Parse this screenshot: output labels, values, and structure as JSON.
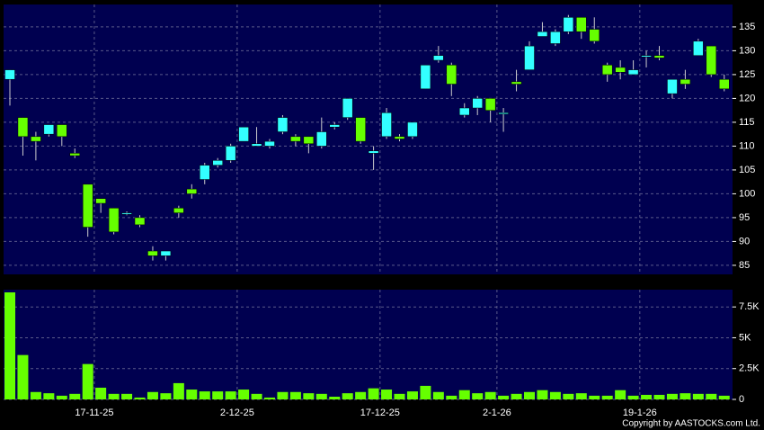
{
  "chart_data": [
    {
      "type": "candlestick",
      "categories": [
        null,
        null,
        null,
        null,
        null,
        null,
        null,
        "17-11-25",
        null,
        null,
        null,
        null,
        null,
        null,
        null,
        null,
        null,
        null,
        "2-12-25",
        null,
        null,
        null,
        null,
        null,
        null,
        null,
        null,
        null,
        null,
        "17-12-25",
        null,
        null,
        null,
        null,
        null,
        null,
        null,
        null,
        "2-1-26",
        null,
        null,
        null,
        null,
        null,
        null,
        null,
        null,
        null,
        null,
        "19-1-26",
        null,
        null,
        null,
        null,
        null,
        null
      ],
      "open": [
        124,
        116,
        112,
        112.5,
        114.5,
        108.5,
        102,
        99,
        97,
        96,
        95,
        88,
        87,
        97,
        101,
        103,
        106,
        107,
        111,
        110,
        110,
        113,
        112,
        112,
        110,
        114,
        116,
        116,
        108.5,
        112,
        112,
        112,
        122,
        128,
        127,
        116.5,
        118,
        120,
        117,
        123.5,
        126,
        133,
        131.5,
        134,
        137,
        134.5,
        127,
        126.5,
        125,
        129,
        129,
        121,
        124,
        129,
        131,
        124
      ],
      "high": [
        126,
        116,
        113,
        114.5,
        114.5,
        109.5,
        102,
        99,
        97,
        96.3,
        95.5,
        89,
        88,
        97.5,
        102,
        106.5,
        107.5,
        110.5,
        114,
        114,
        111.5,
        116.5,
        112.5,
        112,
        116,
        115,
        120,
        116,
        110,
        118,
        112.5,
        115,
        127,
        131,
        127.5,
        119,
        120.5,
        120,
        118,
        126,
        132,
        136,
        134.5,
        137.5,
        137,
        137,
        127.5,
        128,
        128,
        130,
        131,
        124,
        126,
        132.5,
        131,
        125
      ],
      "low": [
        118.5,
        108,
        107,
        112,
        110,
        107.5,
        91,
        96,
        91.5,
        95.5,
        93,
        86,
        86,
        95,
        99,
        102,
        105.5,
        106.5,
        111,
        110,
        109.5,
        112.5,
        110,
        108.5,
        109.5,
        113.5,
        115.5,
        110.5,
        105,
        111.5,
        111,
        111.5,
        122,
        127.5,
        120.5,
        116,
        116.5,
        115,
        113,
        121.5,
        126,
        133,
        131,
        133.5,
        132.5,
        131.5,
        123.5,
        124,
        125,
        126.5,
        128,
        120,
        122,
        129,
        124.5,
        121.5
      ],
      "close": [
        126,
        112,
        111,
        114.5,
        112,
        108,
        93,
        98,
        92,
        96,
        93.5,
        87,
        88,
        96,
        100,
        106,
        107,
        110,
        114,
        110.5,
        111,
        116,
        111,
        110.5,
        113,
        114.5,
        120,
        111,
        109,
        117,
        111.5,
        115,
        127,
        129,
        123,
        118,
        120,
        117.5,
        117,
        123,
        131,
        134,
        134,
        137,
        134,
        132,
        125,
        125.5,
        126,
        129,
        128.5,
        124,
        123,
        132,
        125,
        122
      ],
      "up_color": "#33ffff",
      "down_color": "#66ff00",
      "ylim": [
        83.1,
        139.7
      ],
      "yticks": [
        85,
        90,
        95,
        100,
        105,
        110,
        115,
        120,
        125,
        130,
        135
      ],
      "grid": true
    },
    {
      "type": "bar",
      "values": [
        8680,
        3600,
        600,
        500,
        300,
        450,
        2870,
        950,
        450,
        450,
        150,
        600,
        500,
        1320,
        800,
        650,
        650,
        650,
        800,
        450,
        150,
        600,
        600,
        500,
        450,
        220,
        500,
        600,
        900,
        800,
        450,
        650,
        1100,
        600,
        300,
        750,
        500,
        600,
        300,
        450,
        600,
        750,
        600,
        450,
        500,
        300,
        300,
        750,
        300,
        370,
        370,
        450,
        500,
        450,
        450,
        300
      ],
      "color": "#66ff00",
      "ylim": [
        0,
        8900
      ],
      "yticks": [
        0,
        {
          "value": 2500,
          "label": "2.5K"
        },
        {
          "value": 5000,
          "label": "5K"
        },
        {
          "value": 7500,
          "label": "7.5K"
        }
      ],
      "grid": true,
      "copyright": "Copyright by AASTOCKS.com Ltd."
    }
  ]
}
